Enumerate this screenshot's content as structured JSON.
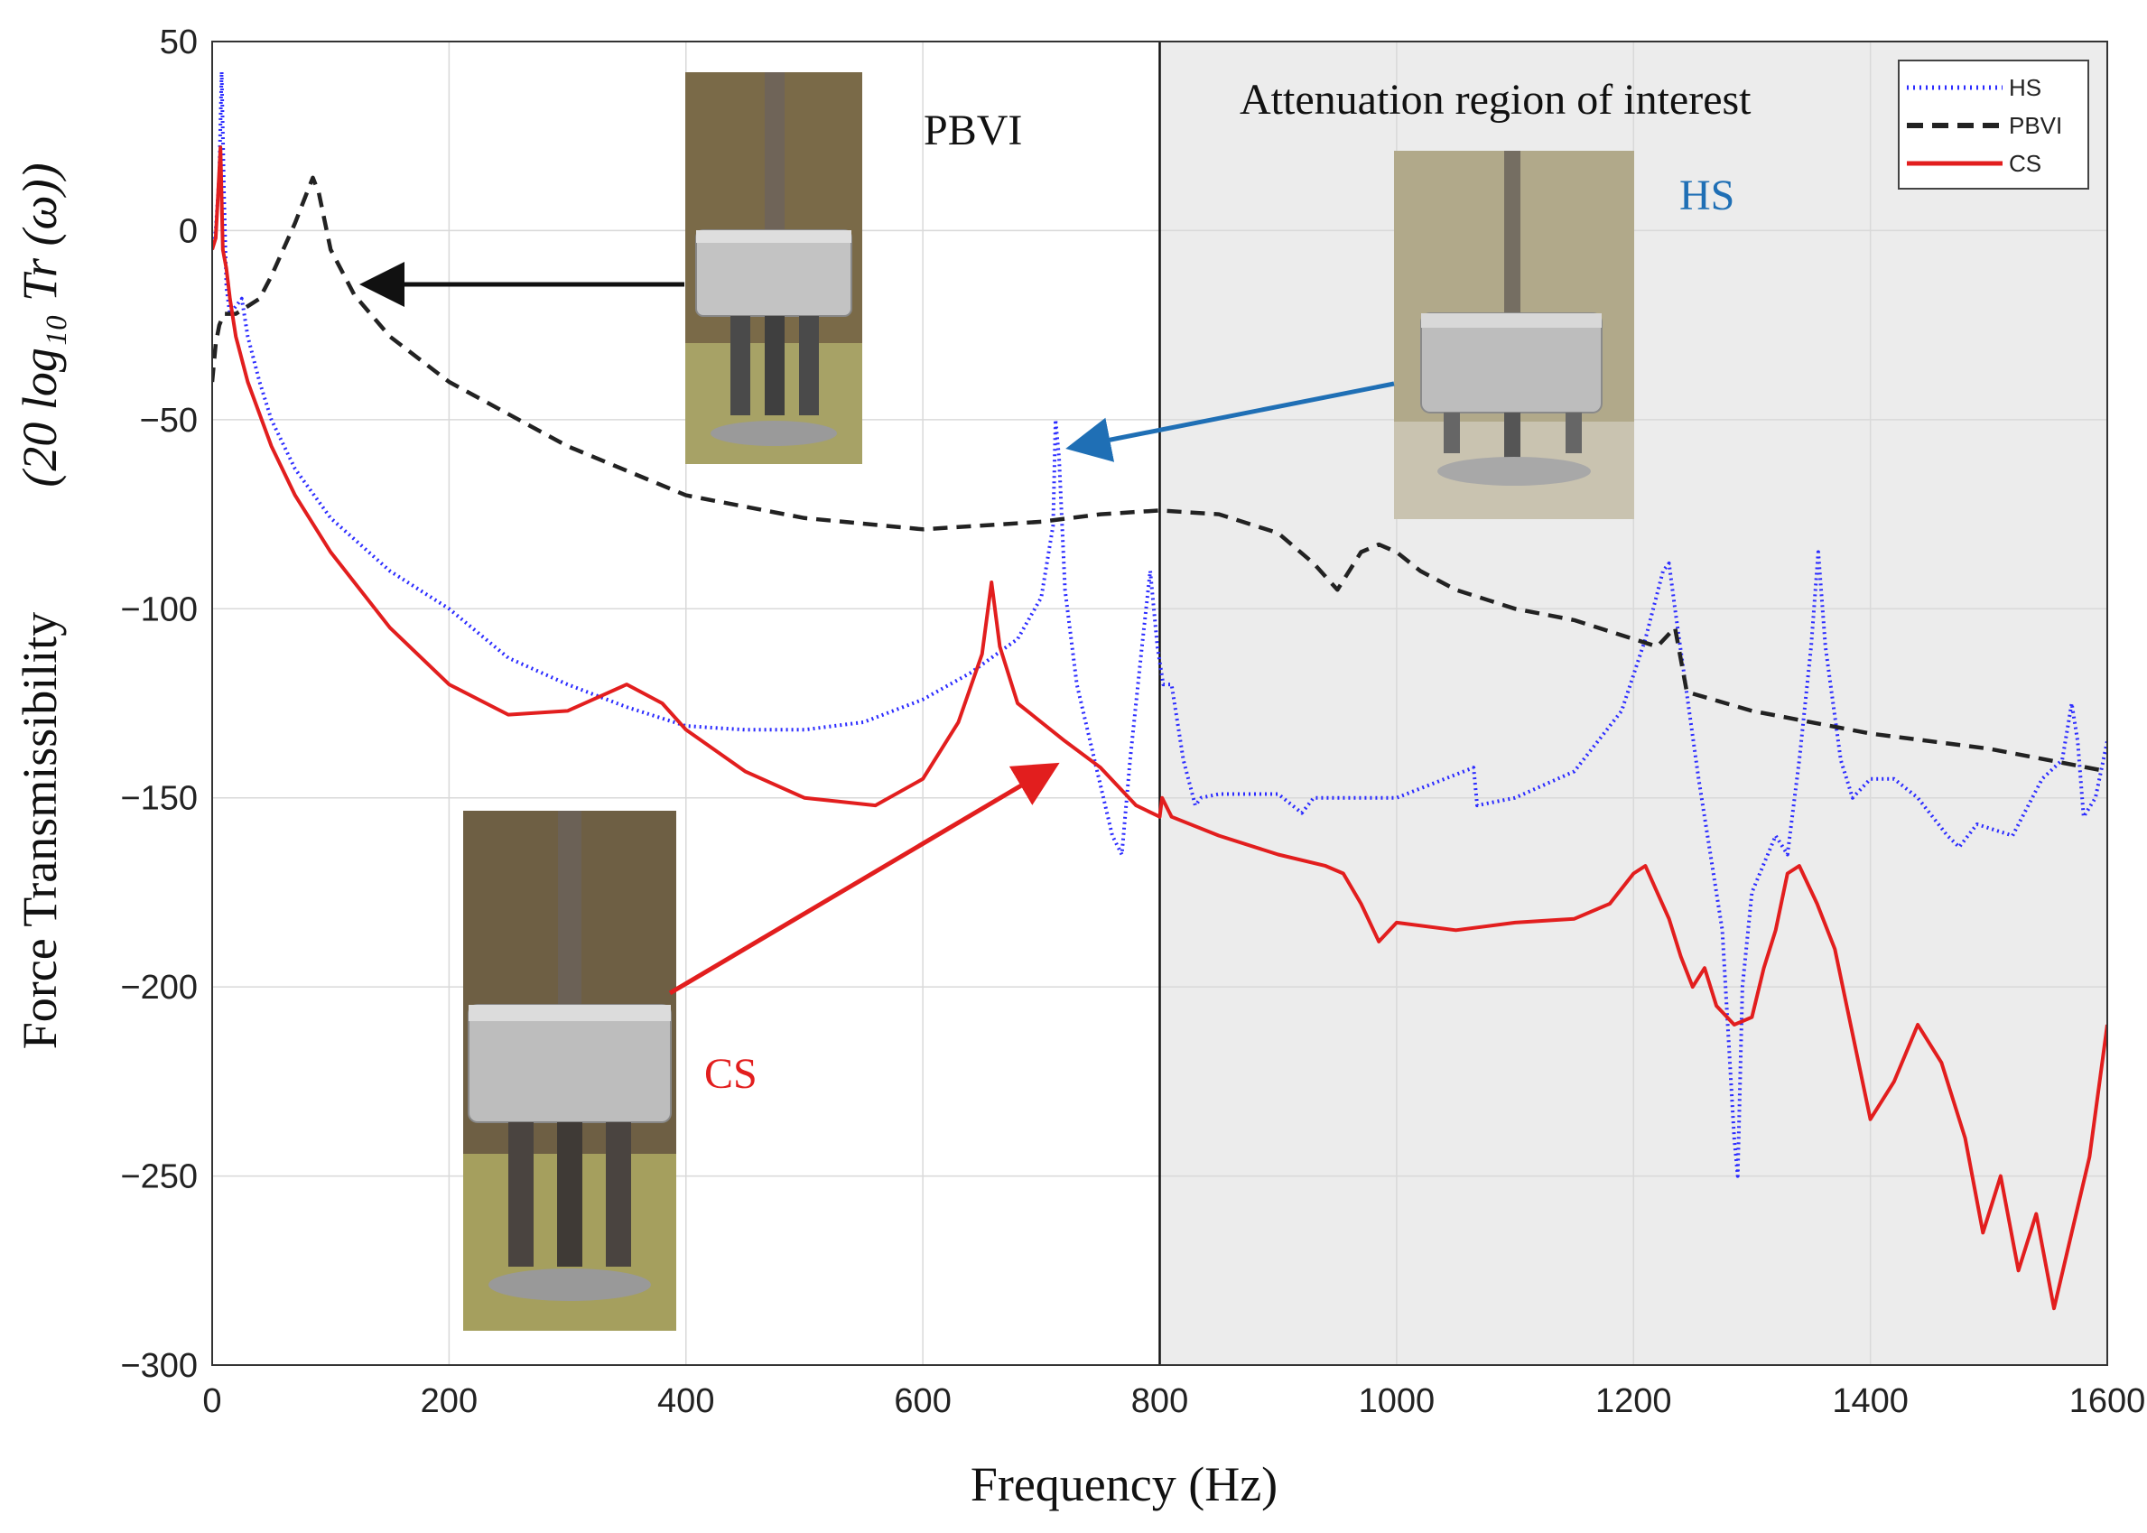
{
  "chart_data": {
    "type": "line",
    "title": "",
    "xlabel": "Frequency (Hz)",
    "ylabel": "Force Transmissibility",
    "ylabel_math": "(20 log₁₀ Tr (ω))",
    "xlim": [
      0,
      1600
    ],
    "ylim": [
      -300,
      50
    ],
    "xticks": [
      0,
      200,
      400,
      600,
      800,
      1000,
      1200,
      1400,
      1600
    ],
    "yticks": [
      50,
      0,
      -50,
      -100,
      -150,
      -200,
      -250,
      -300
    ],
    "grid": true,
    "legend_position": "top-right",
    "shaded_region": {
      "x": [
        800,
        1600
      ],
      "label": "Attenuation region of interest"
    },
    "series": [
      {
        "name": "HS",
        "style": "dotted",
        "color": "#2b2bff",
        "points": [
          [
            0,
            -5
          ],
          [
            3,
            0
          ],
          [
            6,
            15
          ],
          [
            8,
            42
          ],
          [
            10,
            10
          ],
          [
            12,
            -15
          ],
          [
            15,
            -22
          ],
          [
            20,
            -20
          ],
          [
            25,
            -18
          ],
          [
            30,
            -28
          ],
          [
            40,
            -40
          ],
          [
            50,
            -50
          ],
          [
            70,
            -63
          ],
          [
            100,
            -76
          ],
          [
            150,
            -90
          ],
          [
            200,
            -100
          ],
          [
            250,
            -113
          ],
          [
            300,
            -120
          ],
          [
            350,
            -126
          ],
          [
            400,
            -131
          ],
          [
            450,
            -132
          ],
          [
            500,
            -132
          ],
          [
            550,
            -130
          ],
          [
            600,
            -124
          ],
          [
            640,
            -117
          ],
          [
            680,
            -108
          ],
          [
            700,
            -97
          ],
          [
            710,
            -78
          ],
          [
            712,
            -50
          ],
          [
            715,
            -60
          ],
          [
            720,
            -95
          ],
          [
            730,
            -120
          ],
          [
            745,
            -140
          ],
          [
            760,
            -160
          ],
          [
            768,
            -165
          ],
          [
            775,
            -140
          ],
          [
            785,
            -110
          ],
          [
            792,
            -90
          ],
          [
            798,
            -110
          ],
          [
            803,
            -120
          ],
          [
            810,
            -120
          ],
          [
            820,
            -140
          ],
          [
            830,
            -152
          ],
          [
            835,
            -150
          ],
          [
            850,
            -149
          ],
          [
            900,
            -149
          ],
          [
            920,
            -154
          ],
          [
            930,
            -150
          ],
          [
            1000,
            -150
          ],
          [
            1065,
            -142
          ],
          [
            1068,
            -152
          ],
          [
            1100,
            -150
          ],
          [
            1150,
            -143
          ],
          [
            1190,
            -127
          ],
          [
            1210,
            -108
          ],
          [
            1225,
            -90
          ],
          [
            1230,
            -88
          ],
          [
            1235,
            -100
          ],
          [
            1255,
            -145
          ],
          [
            1275,
            -185
          ],
          [
            1285,
            -240
          ],
          [
            1288,
            -250
          ],
          [
            1292,
            -200
          ],
          [
            1300,
            -175
          ],
          [
            1320,
            -160
          ],
          [
            1330,
            -165
          ],
          [
            1340,
            -140
          ],
          [
            1350,
            -110
          ],
          [
            1356,
            -85
          ],
          [
            1362,
            -110
          ],
          [
            1375,
            -140
          ],
          [
            1385,
            -150
          ],
          [
            1400,
            -145
          ],
          [
            1420,
            -145
          ],
          [
            1440,
            -150
          ],
          [
            1465,
            -160
          ],
          [
            1475,
            -163
          ],
          [
            1490,
            -157
          ],
          [
            1500,
            -158
          ],
          [
            1520,
            -160
          ],
          [
            1545,
            -145
          ],
          [
            1562,
            -140
          ],
          [
            1570,
            -125
          ],
          [
            1575,
            -135
          ],
          [
            1580,
            -155
          ],
          [
            1590,
            -150
          ],
          [
            1600,
            -135
          ]
        ]
      },
      {
        "name": "PBVI",
        "style": "dashed",
        "color": "#222222",
        "points": [
          [
            0,
            -40
          ],
          [
            3,
            -30
          ],
          [
            6,
            -25
          ],
          [
            10,
            -22
          ],
          [
            20,
            -22
          ],
          [
            30,
            -20
          ],
          [
            40,
            -18
          ],
          [
            50,
            -12
          ],
          [
            60,
            -5
          ],
          [
            70,
            2
          ],
          [
            80,
            10
          ],
          [
            85,
            14
          ],
          [
            90,
            10
          ],
          [
            100,
            -5
          ],
          [
            120,
            -17
          ],
          [
            150,
            -28
          ],
          [
            200,
            -40
          ],
          [
            300,
            -57
          ],
          [
            400,
            -70
          ],
          [
            500,
            -76
          ],
          [
            600,
            -79
          ],
          [
            700,
            -77
          ],
          [
            750,
            -75
          ],
          [
            800,
            -74
          ],
          [
            850,
            -75
          ],
          [
            900,
            -80
          ],
          [
            930,
            -88
          ],
          [
            950,
            -95
          ],
          [
            960,
            -90
          ],
          [
            970,
            -85
          ],
          [
            985,
            -83
          ],
          [
            1000,
            -85
          ],
          [
            1020,
            -90
          ],
          [
            1050,
            -95
          ],
          [
            1100,
            -100
          ],
          [
            1150,
            -103
          ],
          [
            1200,
            -108
          ],
          [
            1220,
            -110
          ],
          [
            1235,
            -105
          ],
          [
            1245,
            -122
          ],
          [
            1300,
            -127
          ],
          [
            1400,
            -133
          ],
          [
            1500,
            -137
          ],
          [
            1600,
            -143
          ]
        ]
      },
      {
        "name": "CS",
        "style": "solid",
        "color": "#e21e1e",
        "points": [
          [
            0,
            -5
          ],
          [
            3,
            -2
          ],
          [
            5,
            10
          ],
          [
            7,
            22
          ],
          [
            9,
            -5
          ],
          [
            12,
            -10
          ],
          [
            15,
            -18
          ],
          [
            20,
            -28
          ],
          [
            30,
            -40
          ],
          [
            50,
            -57
          ],
          [
            70,
            -70
          ],
          [
            100,
            -85
          ],
          [
            150,
            -105
          ],
          [
            200,
            -120
          ],
          [
            250,
            -128
          ],
          [
            300,
            -127
          ],
          [
            350,
            -120
          ],
          [
            380,
            -125
          ],
          [
            400,
            -132
          ],
          [
            450,
            -143
          ],
          [
            500,
            -150
          ],
          [
            560,
            -152
          ],
          [
            600,
            -145
          ],
          [
            630,
            -130
          ],
          [
            650,
            -112
          ],
          [
            658,
            -93
          ],
          [
            665,
            -110
          ],
          [
            680,
            -125
          ],
          [
            700,
            -130
          ],
          [
            720,
            -135
          ],
          [
            750,
            -142
          ],
          [
            780,
            -152
          ],
          [
            800,
            -155
          ],
          [
            802,
            -150
          ],
          [
            810,
            -155
          ],
          [
            850,
            -160
          ],
          [
            900,
            -165
          ],
          [
            940,
            -168
          ],
          [
            955,
            -170
          ],
          [
            970,
            -178
          ],
          [
            985,
            -188
          ],
          [
            1000,
            -183
          ],
          [
            1050,
            -185
          ],
          [
            1100,
            -183
          ],
          [
            1150,
            -182
          ],
          [
            1180,
            -178
          ],
          [
            1200,
            -170
          ],
          [
            1210,
            -168
          ],
          [
            1220,
            -175
          ],
          [
            1230,
            -182
          ],
          [
            1240,
            -192
          ],
          [
            1250,
            -200
          ],
          [
            1260,
            -195
          ],
          [
            1270,
            -205
          ],
          [
            1285,
            -210
          ],
          [
            1300,
            -208
          ],
          [
            1310,
            -195
          ],
          [
            1320,
            -185
          ],
          [
            1330,
            -170
          ],
          [
            1340,
            -168
          ],
          [
            1355,
            -178
          ],
          [
            1370,
            -190
          ],
          [
            1380,
            -205
          ],
          [
            1390,
            -220
          ],
          [
            1400,
            -235
          ],
          [
            1420,
            -225
          ],
          [
            1440,
            -210
          ],
          [
            1460,
            -220
          ],
          [
            1480,
            -240
          ],
          [
            1495,
            -265
          ],
          [
            1510,
            -250
          ],
          [
            1525,
            -275
          ],
          [
            1540,
            -260
          ],
          [
            1555,
            -285
          ],
          [
            1570,
            -265
          ],
          [
            1585,
            -245
          ],
          [
            1600,
            -210
          ]
        ]
      }
    ],
    "legend": [
      "HS",
      "PBVI",
      "CS"
    ],
    "annotations": [
      {
        "text": "PBVI",
        "color": "#111111"
      },
      {
        "text": "Attenuation region of interest",
        "color": "#111111"
      },
      {
        "text": "HS",
        "color": "#1f6fb5"
      },
      {
        "text": "CS",
        "color": "#e21e1e"
      }
    ],
    "photo_insets": [
      "PBVI isolator photo",
      "HS isolator photo",
      "CS isolator photo"
    ]
  }
}
